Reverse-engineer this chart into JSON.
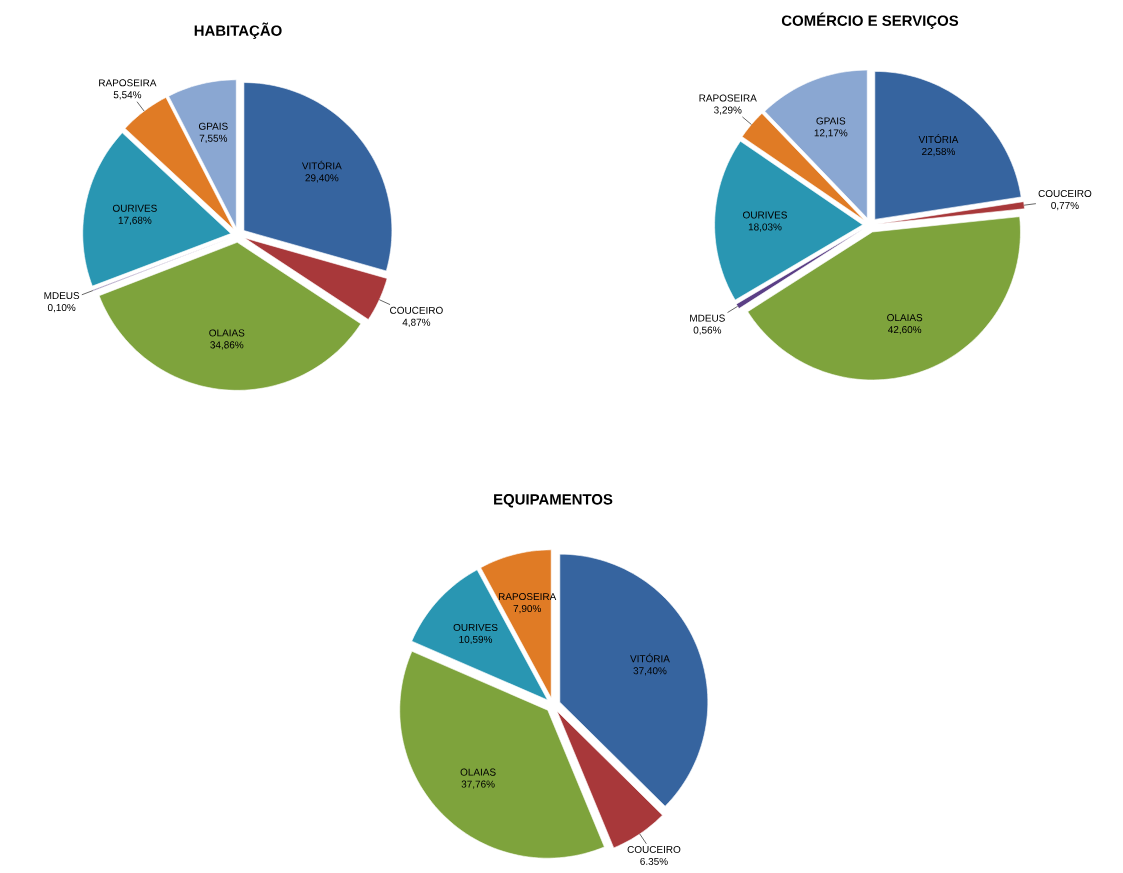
{
  "chart_data": [
    {
      "type": "pie",
      "title": "HABITAÇÃO",
      "categories": [
        "VITÓRIA",
        "COUCEIRO",
        "OLAIAS",
        "MDEUS",
        "OURIVES",
        "RAPOSEIRA",
        "GPAIS"
      ],
      "values": [
        29.4,
        4.87,
        34.86,
        0.1,
        17.68,
        5.54,
        7.55
      ],
      "value_labels": [
        "29,40%",
        "4,87%",
        "34,86%",
        "0,10%",
        "17,68%",
        "5,54%",
        "7,55%"
      ],
      "colors": [
        "#36649f",
        "#a8383a",
        "#7ea33c",
        "#5b3f86",
        "#2996b2",
        "#e07b25",
        "#8aa7d2"
      ]
    },
    {
      "type": "pie",
      "title": "COMÉRCIO E SERVIÇOS",
      "categories": [
        "VITÓRIA",
        "COUCEIRO",
        "OLAIAS",
        "MDEUS",
        "OURIVES",
        "RAPOSEIRA",
        "GPAIS"
      ],
      "values": [
        22.58,
        0.77,
        42.6,
        0.56,
        18.03,
        3.29,
        12.17
      ],
      "value_labels": [
        "22,58%",
        "0,77%",
        "42,60%",
        "0,56%",
        "18,03%",
        "3,29%",
        "12,17%"
      ],
      "colors": [
        "#36649f",
        "#a8383a",
        "#7ea33c",
        "#5b3f86",
        "#2996b2",
        "#e07b25",
        "#8aa7d2"
      ]
    },
    {
      "type": "pie",
      "title": "EQUIPAMENTOS",
      "categories": [
        "VITÓRIA",
        "COUCEIRO",
        "OLAIAS",
        "OURIVES",
        "RAPOSEIRA"
      ],
      "values": [
        37.4,
        6.35,
        37.76,
        10.59,
        7.9
      ],
      "value_labels": [
        "37,40%",
        "6.35%",
        "37,76%",
        "10,59%",
        "7,90%"
      ],
      "colors": [
        "#36649f",
        "#a8383a",
        "#7ea33c",
        "#2996b2",
        "#e07b25"
      ]
    }
  ]
}
